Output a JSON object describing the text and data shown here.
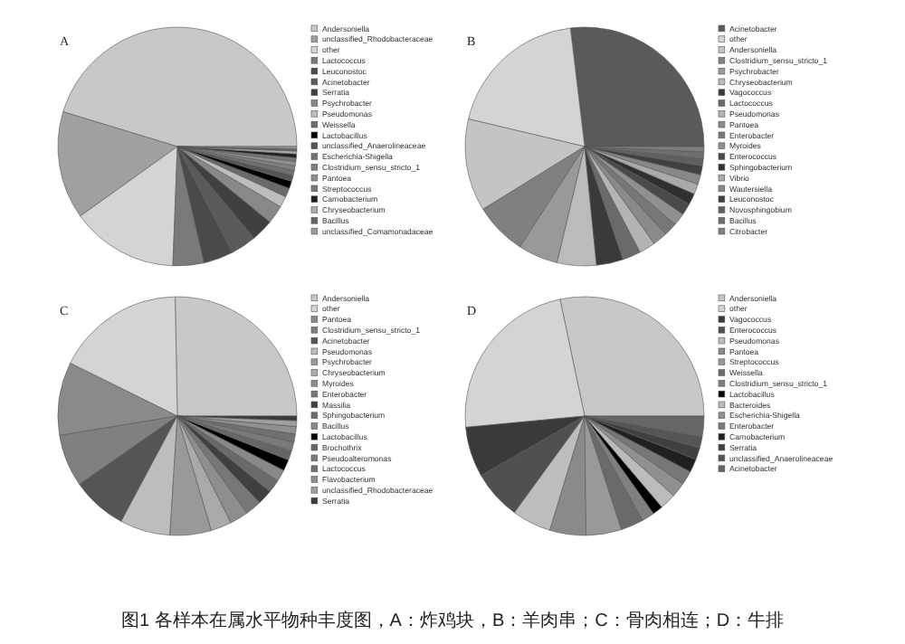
{
  "chart_data": [
    {
      "type": "pie",
      "title": "A",
      "legend": "right",
      "annotations": [
        "图1  各样本在属水平物种丰度图，A：炸鸡块，B：羊肉串；C：骨肉相连；D：牛排"
      ],
      "categories": [
        "Andersoniella",
        "unclassified_Rhodobacteraceae",
        "other",
        "Lactococcus",
        "Leuconostoc",
        "Acinetobacter",
        "Serratia",
        "Psychrobacter",
        "Pseudomonas",
        "Weissella",
        "Lactobacillus",
        "unclassified_Anaerolineaceae",
        "Escherichia-Shigella",
        "Clostridium_sensu_stricto_1",
        "Pantoea",
        "Streptococcus",
        "Carnobacterium",
        "Chryseobacterium",
        "Bacillus",
        "unclassified_Comamonadaceae"
      ],
      "values": [
        45.3,
        14.6,
        14.5,
        4.2,
        4.0,
        3.5,
        3.0,
        2.5,
        1.5,
        1.2,
        1.0,
        0.8,
        0.7,
        0.6,
        0.6,
        0.5,
        0.5,
        0.4,
        0.3,
        0.3
      ],
      "colors": [
        "#c8c8c8",
        "#a0a0a0",
        "#d4d4d4",
        "#7a7a7a",
        "#4a4a4a",
        "#5a5a5a",
        "#404040",
        "#888888",
        "#bdbdbd",
        "#6a6a6a",
        "#000000",
        "#555555",
        "#707070",
        "#808080",
        "#909090",
        "#787878",
        "#202020",
        "#aaaaaa",
        "#666666",
        "#999999"
      ]
    },
    {
      "type": "pie",
      "title": "B",
      "legend": "right",
      "categories": [
        "Acinetobacter",
        "other",
        "Andersoniella",
        "Clostridium_sensu_stricto_1",
        "Psychrobacter",
        "Chryseobacterium",
        "Vagococcus",
        "Lactococcus",
        "Pseudomonas",
        "Pantoea",
        "Enterobacter",
        "Myroides",
        "Enterococcus",
        "Sphingobacterium",
        "Vibrio",
        "Wautersiella",
        "Leuconostoc",
        "Novosphingobium",
        "Bacillus",
        "Citrobacter"
      ],
      "values": [
        26.9,
        19.4,
        12.5,
        7.1,
        5.4,
        5.3,
        3.6,
        2.5,
        2.2,
        2.0,
        1.8,
        1.7,
        1.6,
        1.5,
        1.4,
        1.3,
        1.2,
        1.0,
        0.9,
        0.7
      ],
      "colors": [
        "#5a5a5a",
        "#d4d4d4",
        "#c4c4c4",
        "#808080",
        "#999999",
        "#bbbbbb",
        "#3a3a3a",
        "#6a6a6a",
        "#b4b4b4",
        "#8a8a8a",
        "#777777",
        "#909090",
        "#4a4a4a",
        "#303030",
        "#aaaaaa",
        "#888888",
        "#404040",
        "#606060",
        "#6e6e6e",
        "#7e7e7e"
      ]
    },
    {
      "type": "pie",
      "title": "C",
      "legend": "right",
      "categories": [
        "Andersoniella",
        "other",
        "Pantoea",
        "Clostridium_sensu_stricto_1",
        "Acinetobacter",
        "Pseudomonas",
        "Psychrobacter",
        "Chryseobacterium",
        "Myroides",
        "Enterobacter",
        "Massilia",
        "Sphingobacterium",
        "Bacillus",
        "Lactobacillus",
        "Brochothrix",
        "Pseudoalteromonas",
        "Lactococcus",
        "Flavobacterium",
        "unclassified_Rhodobacteraceae",
        "Serratia"
      ],
      "values": [
        25.3,
        17.4,
        9.9,
        7.1,
        7.5,
        6.8,
        5.6,
        2.8,
        2.5,
        2.2,
        2.0,
        1.8,
        1.6,
        1.5,
        1.3,
        1.2,
        1.1,
        1.0,
        0.8,
        0.6
      ],
      "colors": [
        "#c8c8c8",
        "#d4d4d4",
        "#8a8a8a",
        "#808080",
        "#555555",
        "#bdbdbd",
        "#999999",
        "#aaaaaa",
        "#8e8e8e",
        "#777777",
        "#404040",
        "#6a6a6a",
        "#888888",
        "#000000",
        "#666666",
        "#7a7a7a",
        "#707070",
        "#909090",
        "#a0a0a0",
        "#3a3a3a"
      ]
    },
    {
      "type": "pie",
      "title": "D",
      "legend": "right",
      "categories": [
        "Andersoniella",
        "other",
        "Vagococcus",
        "Enterococcus",
        "Pseudomonas",
        "Pantoea",
        "Streptococcus",
        "Weissella",
        "Clostridium_sensu_stricto_1",
        "Lactobacillus",
        "Bacteroides",
        "Escherichia-Shigella",
        "Enterobacter",
        "Carnobacterium",
        "Serratia",
        "unclassified_Anaerolineaceae",
        "Acinetobacter"
      ],
      "values": [
        28.3,
        23.2,
        6.8,
        6.7,
        5.3,
        4.9,
        4.8,
        3.1,
        1.7,
        1.4,
        2.2,
        2.0,
        1.9,
        1.8,
        1.6,
        1.5,
        2.8
      ],
      "colors": [
        "#c8c8c8",
        "#d4d4d4",
        "#3a3a3a",
        "#505050",
        "#bdbdbd",
        "#8a8a8a",
        "#999999",
        "#6a6a6a",
        "#808080",
        "#000000",
        "#bbbbbb",
        "#909090",
        "#777777",
        "#202020",
        "#404040",
        "#555555",
        "#666666"
      ]
    }
  ]
}
